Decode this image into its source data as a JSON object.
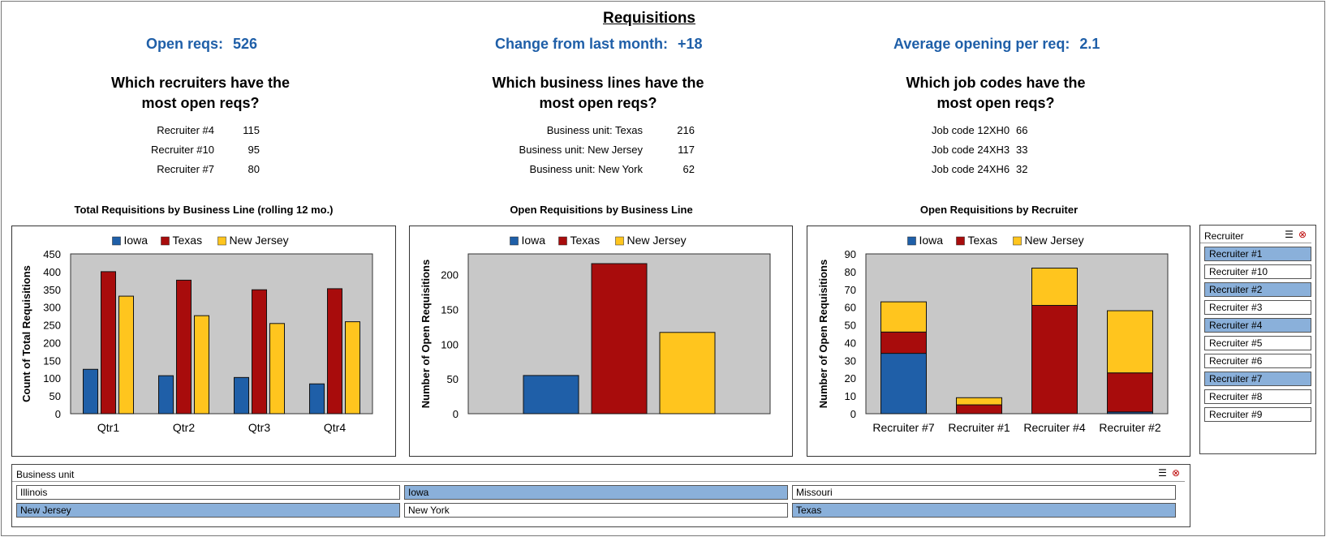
{
  "title": "Requisitions",
  "kpis": [
    {
      "label": "Open reqs:",
      "value": "526"
    },
    {
      "label": "Change from last month:",
      "value": "+18"
    },
    {
      "label": "Average opening per req:",
      "value": "2.1"
    }
  ],
  "questions": [
    {
      "line1": "Which recruiters have the",
      "line2": "most open reqs?"
    },
    {
      "line1": "Which business lines have the",
      "line2": "most open reqs?"
    },
    {
      "line1": "Which job codes have the",
      "line2": "most open reqs?"
    }
  ],
  "top_lists": [
    [
      {
        "label": "Recruiter #4",
        "value": "115"
      },
      {
        "label": "Recruiter #10",
        "value": "95"
      },
      {
        "label": "Recruiter #7",
        "value": "80"
      }
    ],
    [
      {
        "label": "Business unit: Texas",
        "value": "216"
      },
      {
        "label": "Business unit: New Jersey",
        "value": "117"
      },
      {
        "label": "Business unit: New York",
        "value": "62"
      }
    ],
    [
      {
        "label": "Job code 12XH0",
        "value": "66"
      },
      {
        "label": "Job code 24XH3",
        "value": "33"
      },
      {
        "label": "Job code 24XH6",
        "value": "32"
      }
    ]
  ],
  "colors": {
    "iowa": "#1f5fa8",
    "texas": "#a80c0c",
    "new_jersey": "#ffc51e",
    "plot_bg": "#c8c8c8",
    "kpi": "#1f5fa8",
    "selected": "#8ab0da"
  },
  "chart_data": [
    {
      "type": "bar",
      "title": "Total Requisitions by Business Line (rolling 12 mo.)",
      "ylabel": "Count of Total Requisitions",
      "xlabel": "",
      "ylim": [
        0,
        450
      ],
      "yticks": [
        0,
        50,
        100,
        150,
        200,
        250,
        300,
        350,
        400,
        450
      ],
      "categories": [
        "Qtr1",
        "Qtr2",
        "Qtr3",
        "Qtr4"
      ],
      "legend_position": "top",
      "series": [
        {
          "name": "Iowa",
          "values": [
            125,
            107,
            102,
            84
          ]
        },
        {
          "name": "Texas",
          "values": [
            400,
            376,
            349,
            352
          ]
        },
        {
          "name": "New Jersey",
          "values": [
            331,
            276,
            254,
            259
          ]
        }
      ]
    },
    {
      "type": "bar",
      "title": "Open Requisitions by Business Line",
      "ylabel": "Number of Open Requisitions",
      "xlabel": "",
      "ylim": [
        0,
        230
      ],
      "yticks": [
        0,
        50,
        100,
        150,
        200
      ],
      "categories": [
        ""
      ],
      "legend_position": "top",
      "series": [
        {
          "name": "Iowa",
          "values": [
            55
          ]
        },
        {
          "name": "Texas",
          "values": [
            216
          ]
        },
        {
          "name": "New Jersey",
          "values": [
            117
          ]
        }
      ]
    },
    {
      "type": "bar",
      "stacked": true,
      "title": "Open Requisitions by Recruiter",
      "ylabel": "Number of Open Requisitions",
      "xlabel": "",
      "ylim": [
        0,
        90
      ],
      "yticks": [
        0,
        10,
        20,
        30,
        40,
        50,
        60,
        70,
        80,
        90
      ],
      "categories": [
        "Recruiter #7",
        "Recruiter #1",
        "Recruiter #4",
        "Recruiter #2"
      ],
      "legend_position": "top",
      "series": [
        {
          "name": "Iowa",
          "values": [
            34,
            0,
            0,
            1
          ]
        },
        {
          "name": "Texas",
          "values": [
            12,
            5,
            61,
            22
          ]
        },
        {
          "name": "New Jersey",
          "values": [
            17,
            4,
            21,
            35
          ]
        }
      ]
    }
  ],
  "recruiter_slicer": {
    "header": "Recruiter",
    "items": [
      {
        "label": "Recruiter #1",
        "selected": true
      },
      {
        "label": "Recruiter #10",
        "selected": false
      },
      {
        "label": "Recruiter #2",
        "selected": true
      },
      {
        "label": "Recruiter #3",
        "selected": false
      },
      {
        "label": "Recruiter #4",
        "selected": true
      },
      {
        "label": "Recruiter #5",
        "selected": false
      },
      {
        "label": "Recruiter #6",
        "selected": false
      },
      {
        "label": "Recruiter #7",
        "selected": true
      },
      {
        "label": "Recruiter #8",
        "selected": false
      },
      {
        "label": "Recruiter #9",
        "selected": false
      }
    ]
  },
  "business_unit_slicer": {
    "header": "Business unit",
    "items": [
      {
        "label": "Illinois",
        "selected": false
      },
      {
        "label": "Iowa",
        "selected": true
      },
      {
        "label": "Missouri",
        "selected": false
      },
      {
        "label": "New Jersey",
        "selected": true
      },
      {
        "label": "New York",
        "selected": false
      },
      {
        "label": "Texas",
        "selected": true
      }
    ]
  },
  "icons": {
    "multi_select": "multi-select-icon",
    "clear_filter": "clear-filter-icon"
  }
}
